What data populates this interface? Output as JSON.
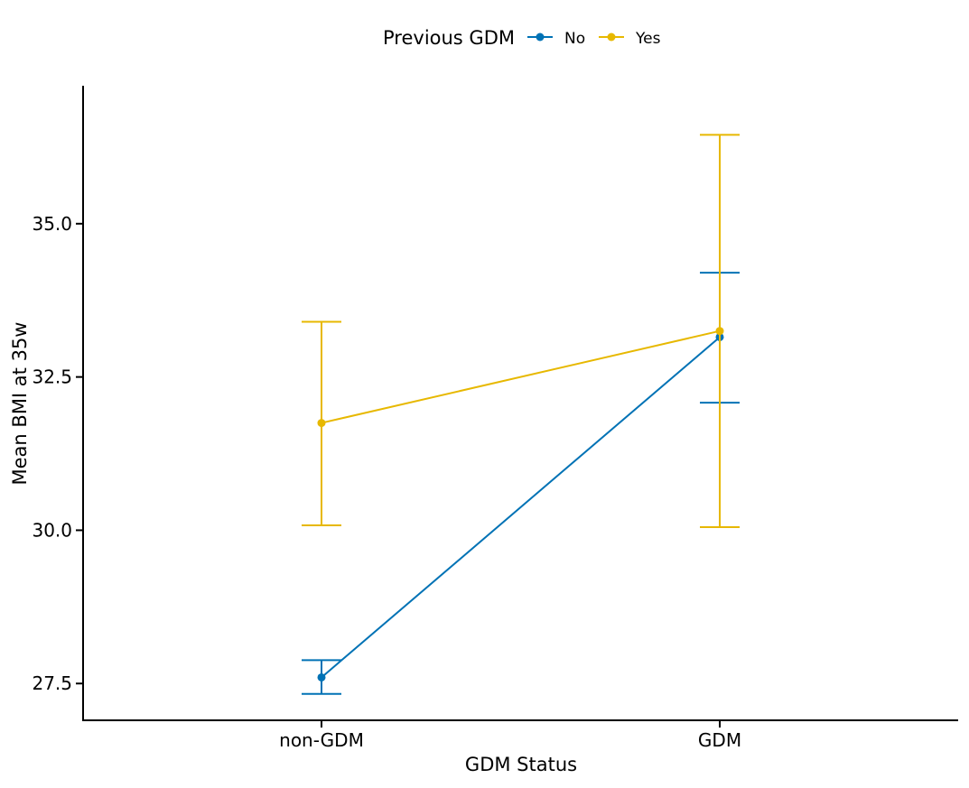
{
  "chart_data": {
    "type": "line",
    "xlabel": "GDM Status",
    "ylabel": "Mean BMI at 35w",
    "categories": [
      "non-GDM",
      "GDM"
    ],
    "ylim": [
      26.9,
      37.25
    ],
    "yticks": [
      27.5,
      30.0,
      32.5,
      35.0
    ],
    "ytick_labels": [
      "27.5",
      "30.0",
      "32.5",
      "35.0"
    ],
    "grid": false,
    "legend": {
      "title": "Previous GDM",
      "placement": "top"
    },
    "series": [
      {
        "name": "No",
        "color": "#0072B5",
        "values": [
          27.6,
          33.15
        ],
        "lower": [
          27.33,
          32.08
        ],
        "upper": [
          27.88,
          34.2
        ]
      },
      {
        "name": "Yes",
        "color": "#E7B800",
        "values": [
          31.75,
          33.25
        ],
        "lower": [
          30.08,
          30.05
        ],
        "upper": [
          33.4,
          36.45
        ]
      }
    ]
  }
}
